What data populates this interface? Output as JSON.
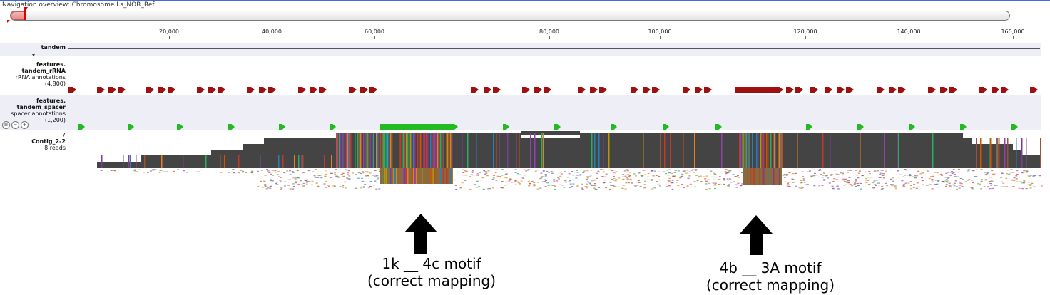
{
  "navigation": {
    "title": "Navigation overview: Chromosome Ls_NOR_Ref"
  },
  "ruler": {
    "ticks": [
      "20,000",
      "40,000",
      "60,000",
      "80,000",
      "100,000",
      "120,000",
      "140,000",
      "160,000"
    ]
  },
  "tracks": {
    "tandem": {
      "name": "tandem"
    },
    "rrna": {
      "name_line1": "features.",
      "name_line2": "tandem_rRNA",
      "subtitle": "rRNA annotations",
      "count": "(4,800)",
      "color": "#a01010"
    },
    "spacer": {
      "name_line1": "features.",
      "name_line2": "tandem_spacer",
      "subtitle": "spacer annotations",
      "count": "(1,200)",
      "color": "#22bb22",
      "icons": [
        "menu-icon",
        "zoom-out-icon",
        "zoom-in-icon"
      ]
    },
    "contig": {
      "coverage": "7",
      "name": "Contig_2-2",
      "reads": "8 reads",
      "consensus_color": "#444444"
    }
  },
  "annotations": [
    {
      "line1": "1k __ 4c motif",
      "line2": "(correct mapping)"
    },
    {
      "line1": "4b __ 3A motif",
      "line2": "(correct mapping)"
    }
  ]
}
